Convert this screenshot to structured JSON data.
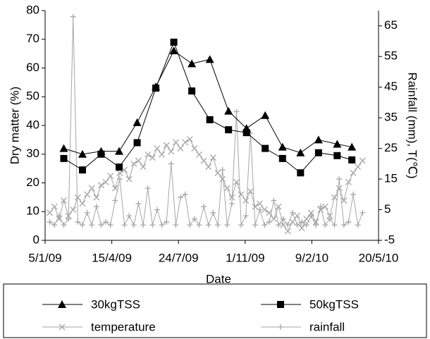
{
  "chart_data": {
    "type": "line",
    "x_label": "Date",
    "y_label": "Dry matter (%)",
    "y2_label": "Rainfall (mm), T(℃)",
    "xlim": [
      "2009-01-05",
      "2010-05-20"
    ],
    "xticks": [
      {
        "value": "2009-01-05",
        "label": "5/1/09"
      },
      {
        "value": "2009-04-15",
        "label": "15/4/09"
      },
      {
        "value": "2009-07-24",
        "label": "24/7/09"
      },
      {
        "value": "2009-11-01",
        "label": "1/11/09"
      },
      {
        "value": "2010-02-09",
        "label": "9/2/10"
      },
      {
        "value": "2010-05-20",
        "label": "20/5/10"
      }
    ],
    "ylim": [
      0,
      80
    ],
    "yticks": [
      0,
      10,
      20,
      30,
      40,
      50,
      60,
      70,
      80
    ],
    "y2lim": [
      -5,
      70
    ],
    "y2ticks": [
      -5,
      5,
      15,
      25,
      35,
      45,
      55,
      65
    ],
    "legend": "below",
    "x": [
      "2009-01-12",
      "2009-01-19",
      "2009-01-26",
      "2009-02-02",
      "2009-02-09",
      "2009-02-16",
      "2009-02-23",
      "2009-03-02",
      "2009-03-09",
      "2009-03-16",
      "2009-03-23",
      "2009-03-30",
      "2009-04-06",
      "2009-04-13",
      "2009-04-20",
      "2009-04-27",
      "2009-05-04",
      "2009-05-11",
      "2009-05-18",
      "2009-05-25",
      "2009-06-01",
      "2009-06-08",
      "2009-06-15",
      "2009-06-22",
      "2009-06-29",
      "2009-07-06",
      "2009-07-13",
      "2009-07-20",
      "2009-07-27",
      "2009-08-03",
      "2009-08-10",
      "2009-08-17",
      "2009-08-24",
      "2009-08-31",
      "2009-09-07",
      "2009-09-14",
      "2009-09-21",
      "2009-09-28",
      "2009-10-05",
      "2009-10-12",
      "2009-10-19",
      "2009-10-26",
      "2009-11-02",
      "2009-11-09",
      "2009-11-16",
      "2009-11-23",
      "2009-11-30",
      "2009-12-07",
      "2009-12-14",
      "2009-12-21",
      "2009-12-28",
      "2010-01-04",
      "2010-01-11",
      "2010-01-18",
      "2010-01-25",
      "2010-02-01",
      "2010-02-08",
      "2010-02-15",
      "2010-02-22",
      "2010-03-01",
      "2010-03-08",
      "2010-03-15",
      "2010-03-22",
      "2010-03-29",
      "2010-04-05",
      "2010-04-12",
      "2010-04-19",
      "2010-04-26"
    ],
    "series": [
      {
        "name": "30kgTSS",
        "color": "#000000",
        "marker": "triangle",
        "x": [
          "2009-02-02",
          "2009-03-02",
          "2009-03-30",
          "2009-04-26",
          "2009-05-23",
          "2009-06-20",
          "2009-07-17",
          "2009-08-13",
          "2009-09-09",
          "2009-10-07",
          "2009-11-03",
          "2009-12-01",
          "2009-12-27",
          "2010-01-23",
          "2010-02-19",
          "2010-03-19",
          "2010-04-10"
        ],
        "values": [
          32,
          30,
          31,
          31,
          41,
          53.5,
          66,
          61.5,
          63,
          45,
          39,
          43.5,
          32.5,
          30.5,
          35,
          33.5,
          32.5
        ]
      },
      {
        "name": "50kgTSS",
        "color": "#000000",
        "marker": "square",
        "x": [
          "2009-02-02",
          "2009-03-02",
          "2009-03-30",
          "2009-04-26",
          "2009-05-23",
          "2009-06-20",
          "2009-07-17",
          "2009-08-13",
          "2009-09-09",
          "2009-10-07",
          "2009-11-03",
          "2009-12-01",
          "2009-12-27",
          "2010-01-23",
          "2010-02-19",
          "2010-03-19",
          "2010-04-10"
        ],
        "values": [
          28.5,
          24.5,
          30,
          25.5,
          34,
          53,
          69,
          52,
          42,
          38.5,
          37.5,
          32,
          28.5,
          23.5,
          30.5,
          29.5,
          28
        ]
      },
      {
        "name": "temperature",
        "color": "#a6a6a6",
        "marker": "x",
        "axis": "y2",
        "values": [
          4,
          6,
          2,
          8,
          3,
          5,
          9,
          7,
          10,
          12,
          9,
          13,
          14,
          16,
          12,
          17,
          18,
          15,
          20,
          21,
          19,
          23,
          22,
          25,
          23,
          26,
          24,
          27,
          25,
          27,
          28,
          25,
          23,
          21,
          19,
          22,
          17,
          15,
          12,
          9,
          14,
          10,
          8,
          11,
          6,
          7,
          5,
          4,
          2,
          6,
          0,
          -2,
          1,
          3,
          -1,
          2,
          4,
          1,
          5,
          6,
          3,
          9,
          12,
          8,
          14,
          17,
          19,
          21
        ]
      },
      {
        "name": "rainfall",
        "color": "#a6a6a6",
        "marker": "plus",
        "axis": "y2",
        "values": [
          1,
          0,
          3,
          0,
          2,
          68,
          1,
          0,
          4,
          0,
          6,
          0,
          1,
          0,
          8,
          15,
          0,
          3,
          0,
          7,
          0,
          12,
          0,
          5,
          0,
          1,
          20,
          0,
          9,
          10,
          0,
          2,
          0,
          6,
          0,
          4,
          0,
          18,
          0,
          7,
          37,
          0,
          3,
          30,
          0,
          5,
          0,
          1,
          8,
          0,
          2,
          0,
          4,
          0,
          1,
          0,
          3,
          0,
          6,
          0,
          2,
          0,
          15,
          0,
          1,
          10,
          0,
          4
        ]
      }
    ]
  }
}
